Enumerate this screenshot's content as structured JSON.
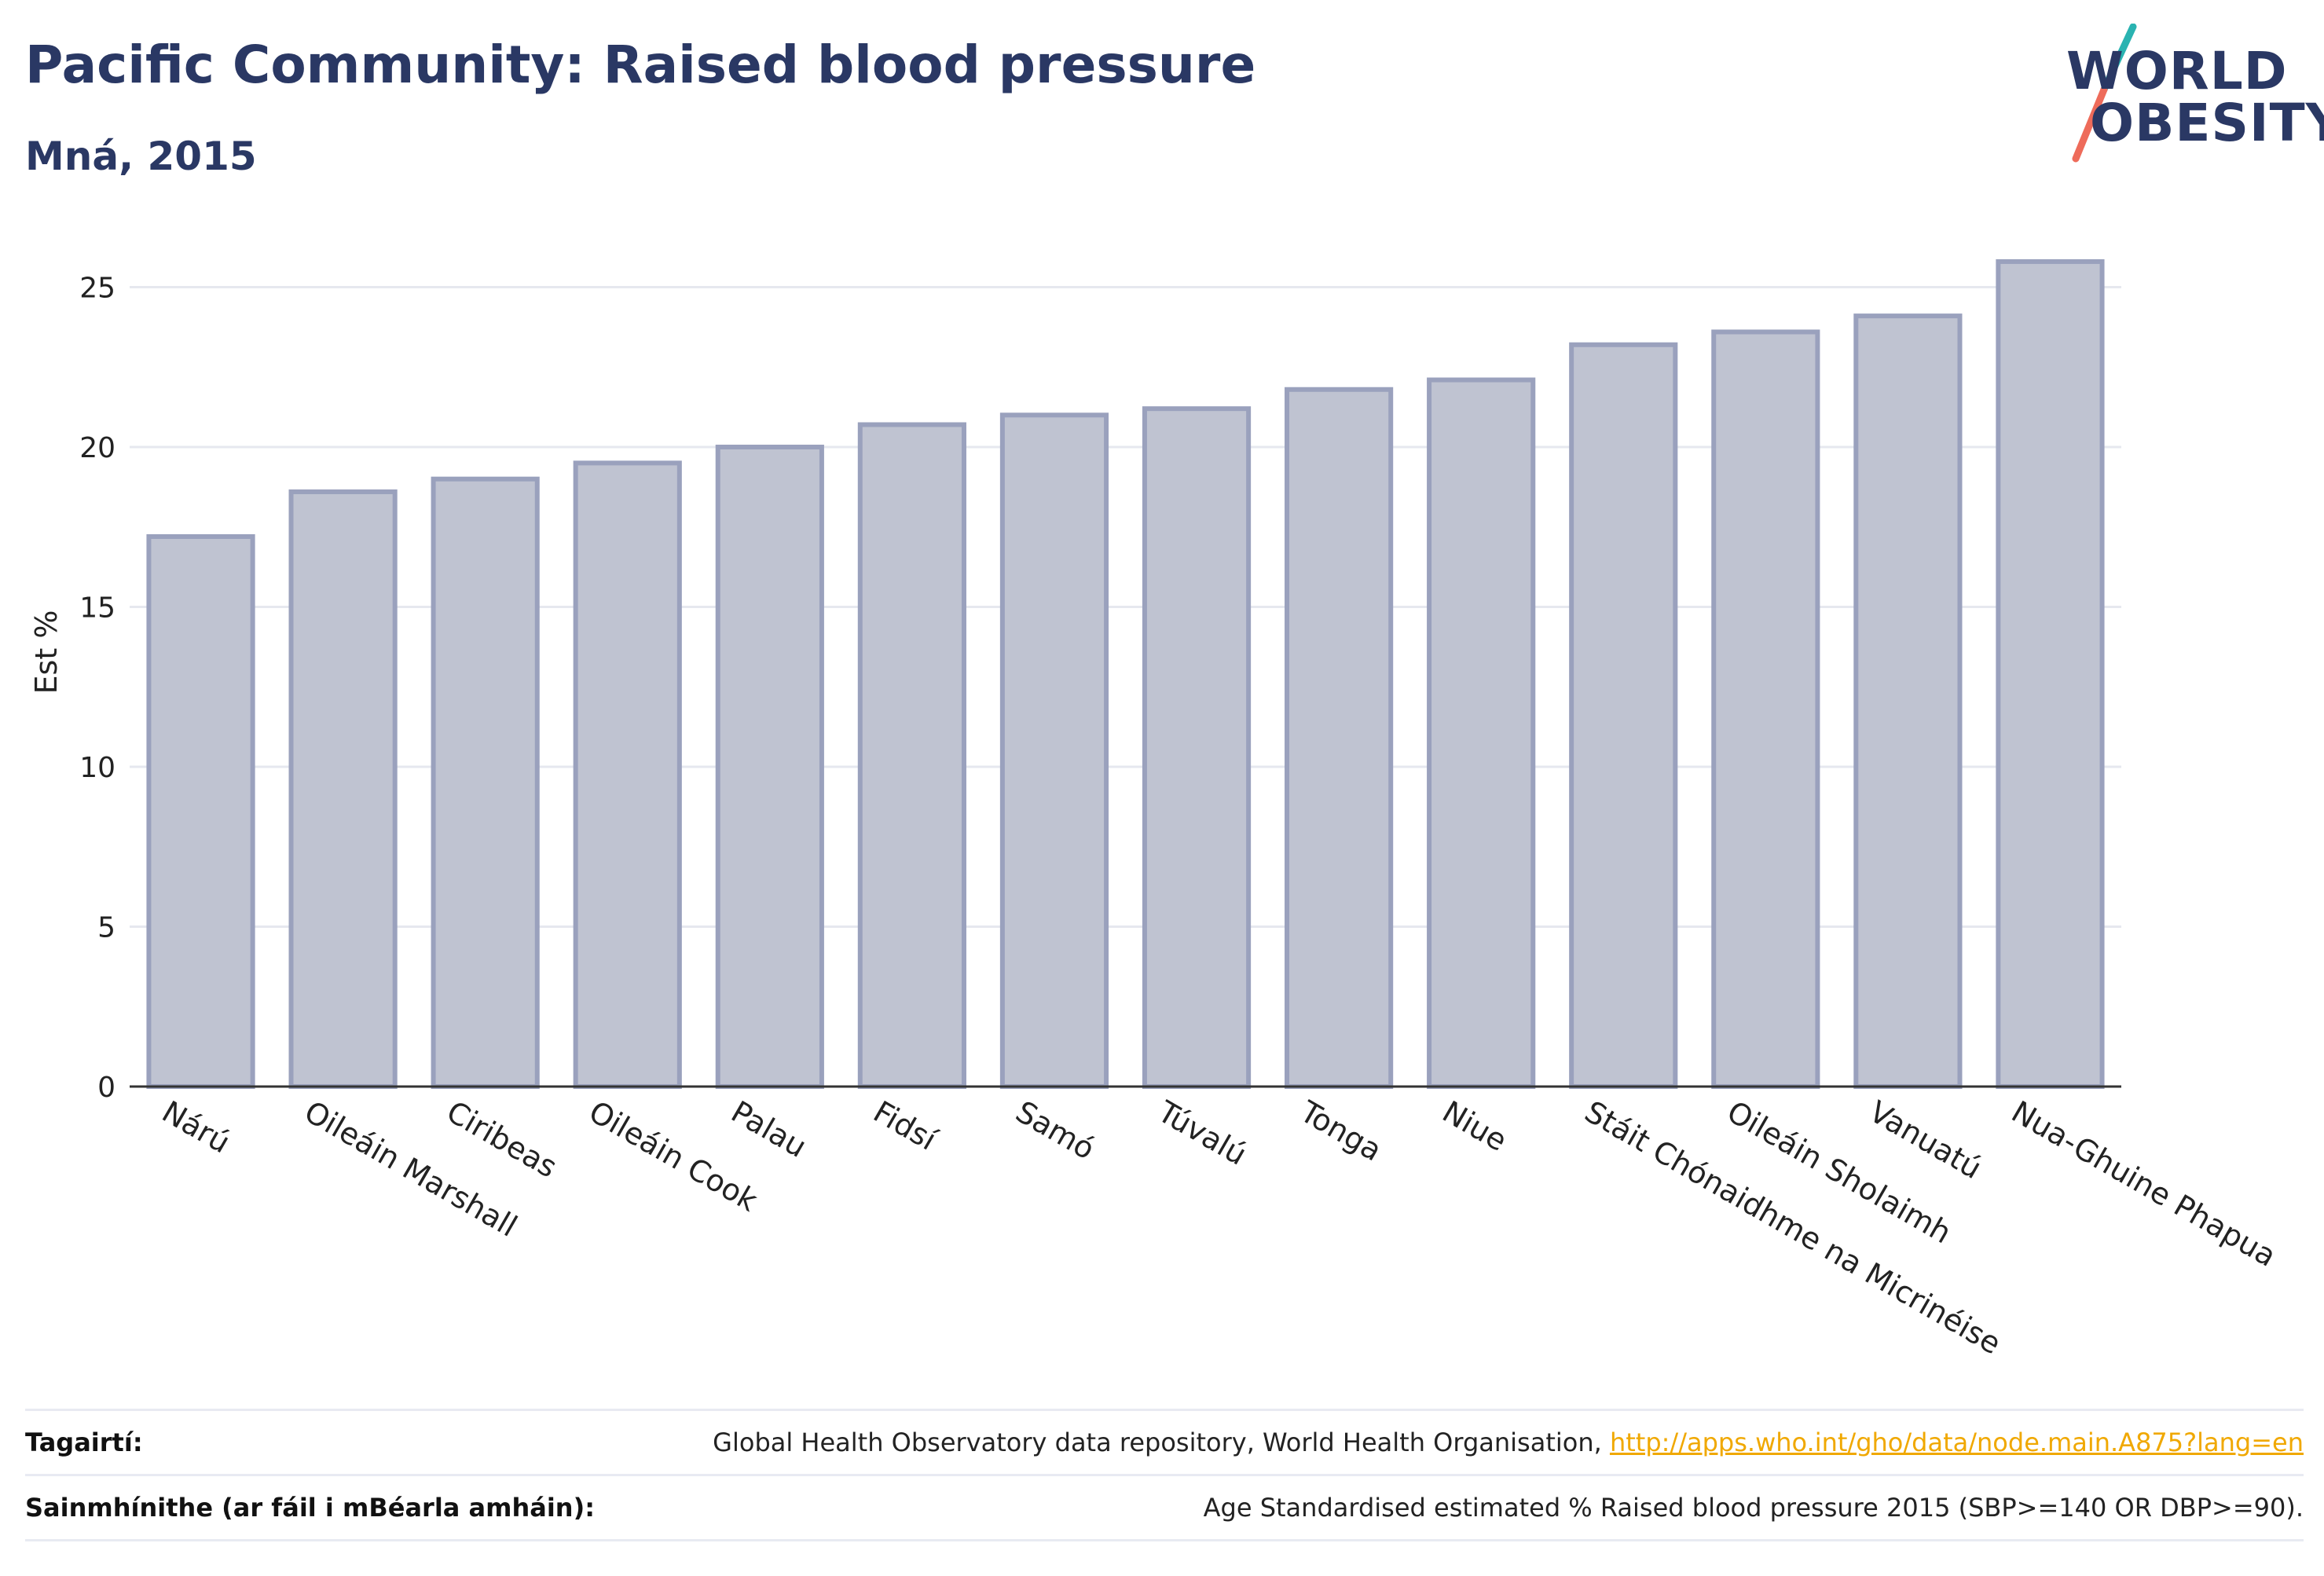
{
  "header": {
    "title": "Pacific Community: Raised blood pressure",
    "subtitle": "Mná, 2015"
  },
  "logo": {
    "line1": "WORLD",
    "line2": "OBESITY",
    "colors": {
      "text": "#2a3864",
      "slash_top": "#2ab3b1",
      "slash_bottom": "#ee6b5a"
    }
  },
  "chart_data": {
    "type": "bar",
    "ylabel": "Est %",
    "xlabel": "",
    "ylim": [
      0,
      27.5
    ],
    "yticks": [
      0,
      5,
      10,
      15,
      20,
      25
    ],
    "grid": true,
    "categories": [
      "Nárú",
      "Oileáin Marshall",
      "Ciribeas",
      "Oileáin Cook",
      "Palau",
      "Fidsí",
      "Samó",
      "Túvalú",
      "Tonga",
      "Niue",
      "Stáit Chónaidhme na Micrinéise",
      "Oileáin Sholaimh",
      "Vanuatú",
      "Nua-Ghuine Phapua"
    ],
    "values": [
      17.2,
      18.6,
      19.0,
      19.5,
      20.0,
      20.7,
      21.0,
      21.2,
      21.8,
      22.1,
      23.2,
      23.6,
      24.1,
      25.8
    ],
    "colors": {
      "bar_fill": "#bfc3d1",
      "bar_stroke": "#9aa1bd",
      "axis": "#333333",
      "grid": "#e6e8ef"
    }
  },
  "footer": {
    "references_label": "Tagairtí:",
    "references_text": "Global Health Observatory data repository, World Health Organisation, ",
    "references_link": "http://apps.who.int/gho/data/node.main.A875?lang=en",
    "definitions_label": "Sainmhínithe (ar fáil i mBéarla amháin):",
    "definitions_text": "Age Standardised estimated % Raised blood pressure 2015 (SBP>=140 OR DBP>=90)."
  }
}
